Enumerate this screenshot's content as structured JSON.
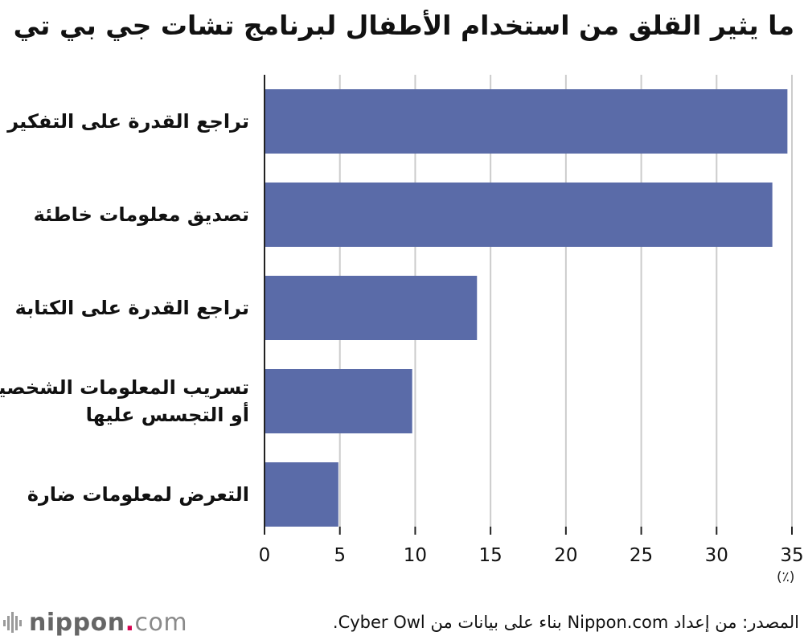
{
  "title": "ما يثير القلق من استخدام الأطفال لبرنامج تشات جي بي تي",
  "chart_data": {
    "type": "bar",
    "orientation": "horizontal",
    "categories": [
      "تراجع القدرة على التفكير",
      "تصديق معلومات خاطئة",
      "تراجع القدرة على الكتابة",
      "تسريب المعلومات الشخصية أو التجسس عليها",
      "التعرض لمعلومات ضارة"
    ],
    "category_lines": [
      [
        "تراجع القدرة على التفكير"
      ],
      [
        "تصديق معلومات خاطئة"
      ],
      [
        "تراجع القدرة على الكتابة"
      ],
      [
        "تسريب المعلومات الشخصية",
        "أو التجسس عليها"
      ],
      [
        "التعرض لمعلومات ضارة"
      ]
    ],
    "values": [
      34.7,
      33.7,
      14.1,
      9.8,
      4.9
    ],
    "xlim": [
      0,
      35
    ],
    "xticks": [
      0,
      5,
      10,
      15,
      20,
      25,
      30,
      35
    ],
    "xunit": "(٪)",
    "grid": true,
    "bar_color": "#5a6ba8",
    "grid_color": "#cccccc"
  },
  "source": "المصدر: من إعداد Nippon.com بناء على بيانات من Cyber Owl.",
  "logo": {
    "brand": "nippon",
    "dot": ".",
    "suffix": "com"
  }
}
